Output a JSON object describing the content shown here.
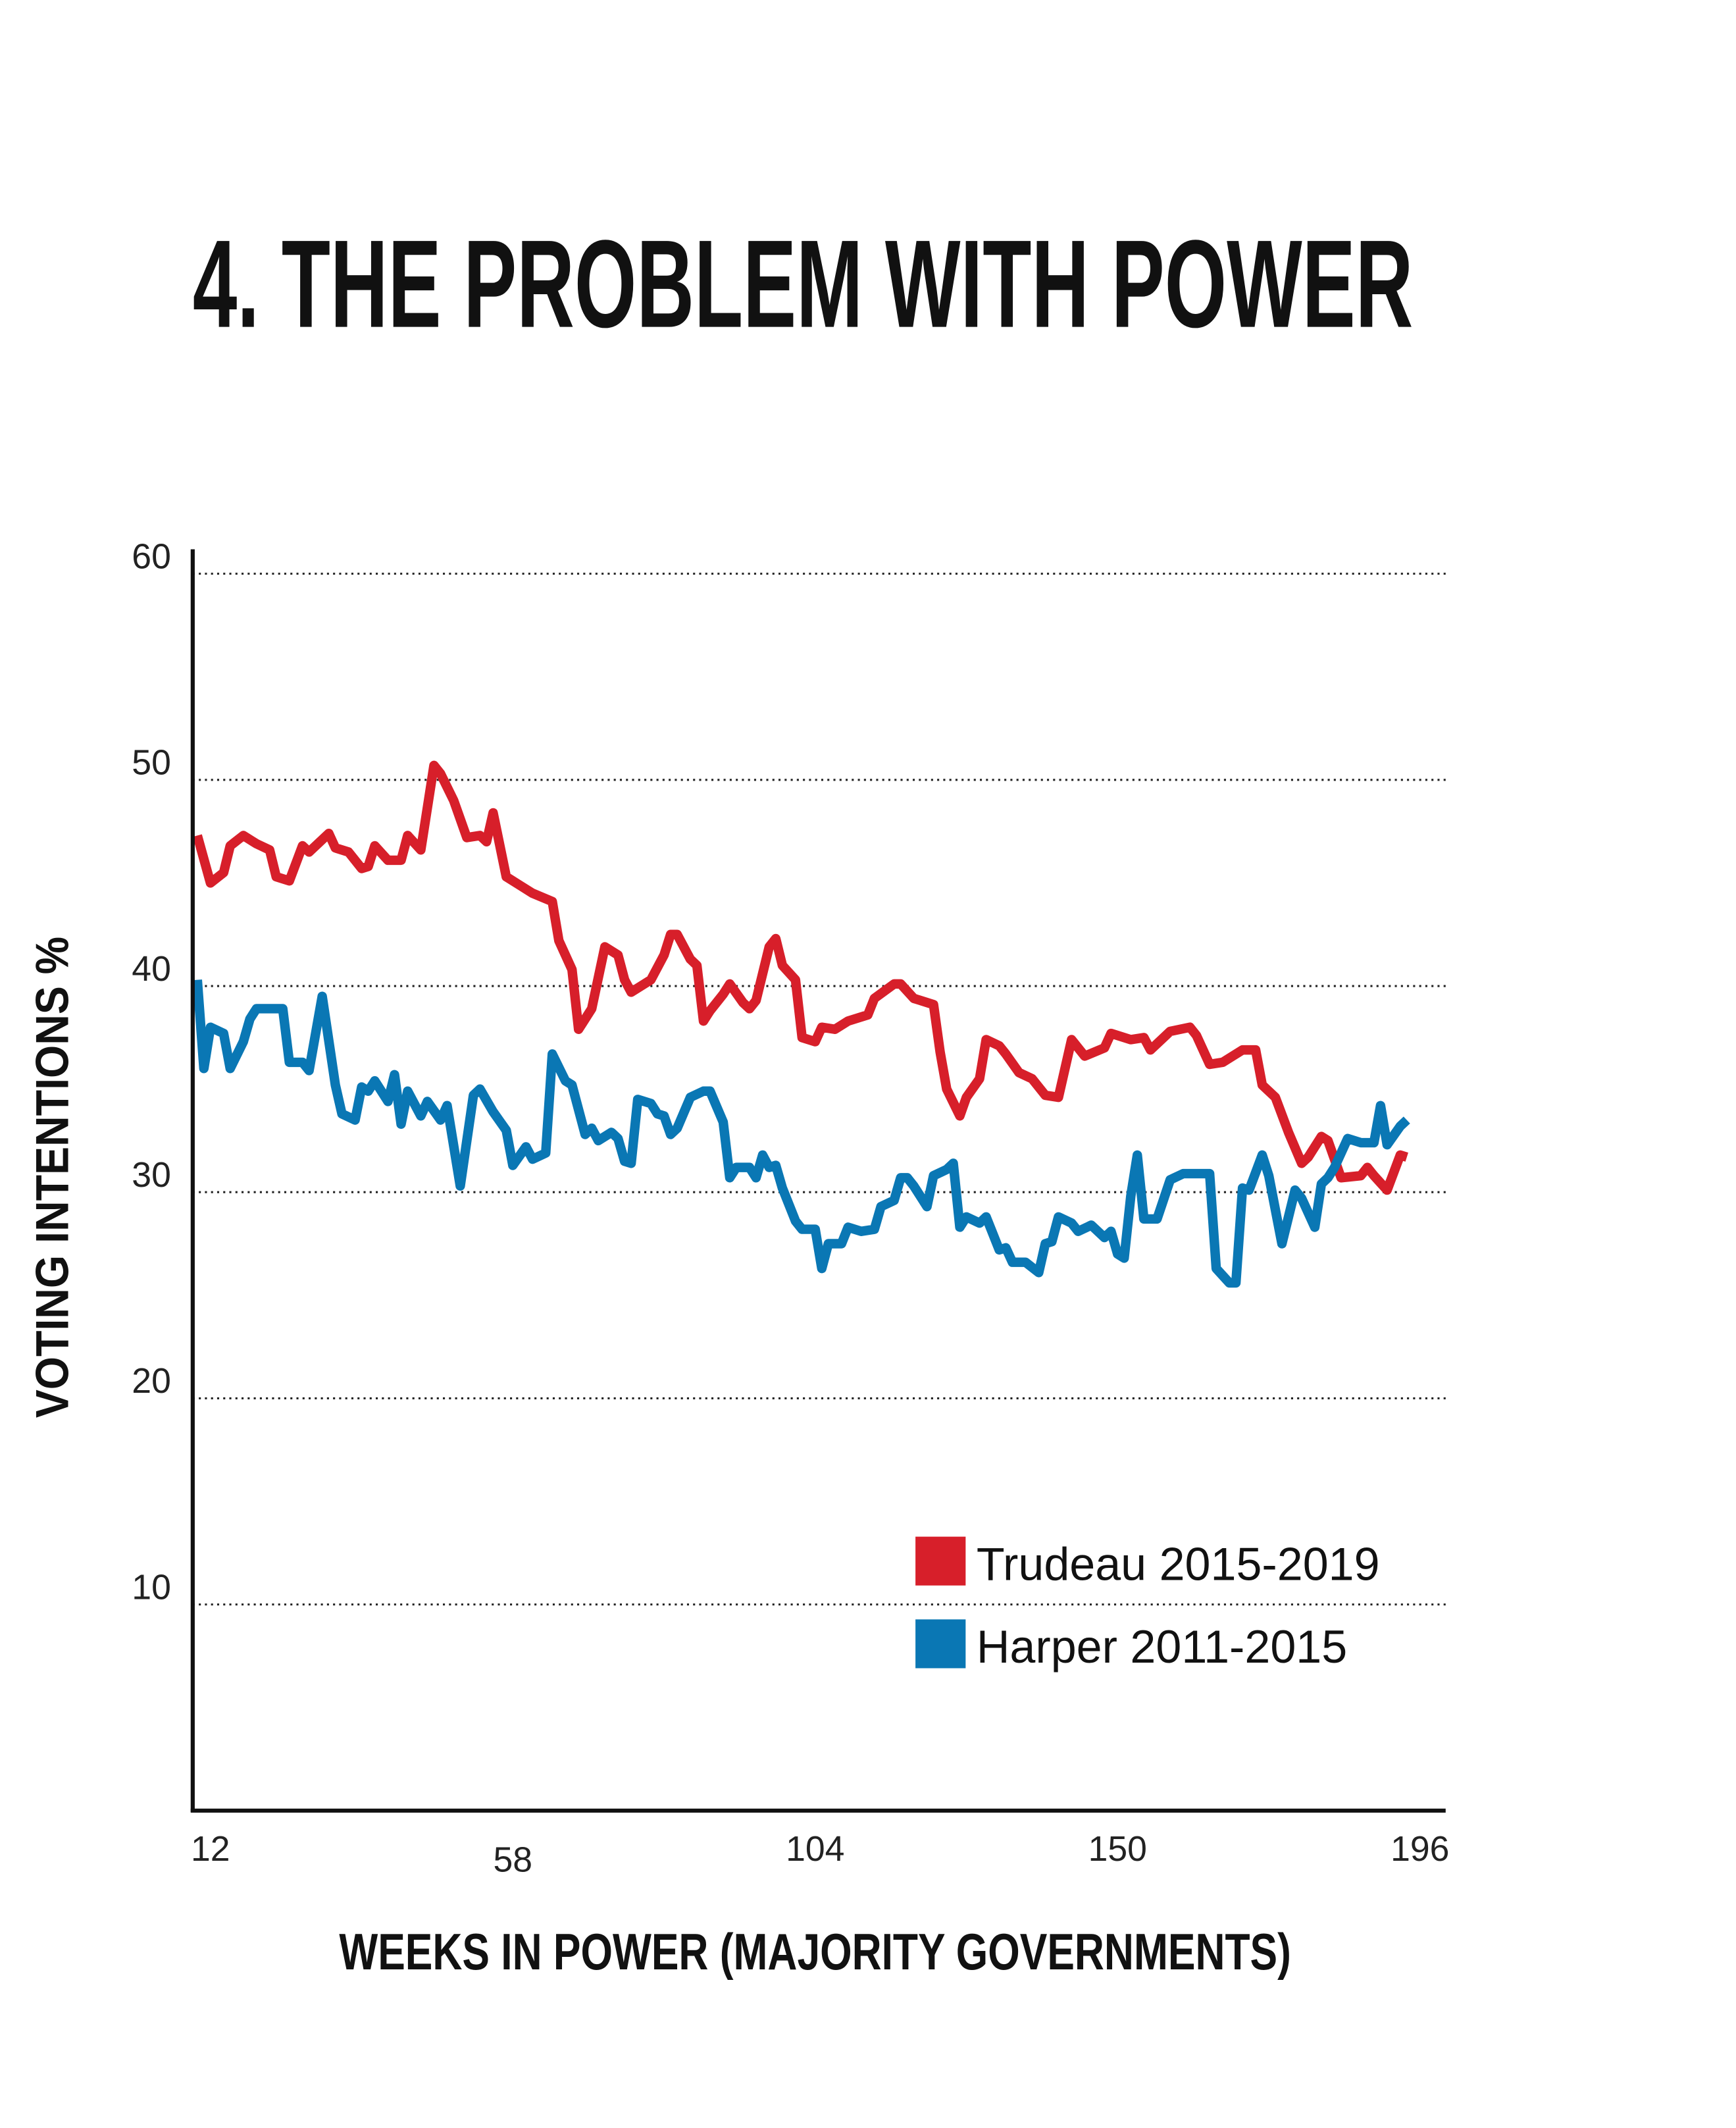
{
  "chart_data": {
    "type": "line",
    "title": "4. THE PROBLEM WITH POWER",
    "y_label": "VOTING INTENTIONS %",
    "x_label": "WEEKS IN POWER (MAJORITY GOVERNMENTS)",
    "xlim": [
      9.3,
      199.7
    ],
    "xticks": [
      12,
      58,
      104,
      150,
      196
    ],
    "ylim": [
      0,
      61
    ],
    "yticks": [
      10,
      20,
      30,
      40,
      50,
      60
    ],
    "grid": true,
    "legend": "lower right",
    "series": [
      {
        "name": "Trudeau 2015-2019",
        "color": "#d71f2a",
        "x": [
          10,
          12,
          14,
          15,
          17,
          19,
          21,
          22,
          24,
          26,
          27,
          30,
          31,
          33,
          35,
          36,
          37,
          39,
          41,
          42,
          44,
          46,
          47,
          49,
          51,
          53,
          54,
          55,
          57,
          59,
          61,
          64,
          65,
          67,
          68,
          70,
          72,
          74,
          75,
          76,
          79,
          81,
          82,
          83,
          85,
          86,
          87,
          88,
          90,
          91,
          93,
          94,
          95,
          97,
          98,
          99,
          101,
          102,
          104,
          105,
          107,
          109,
          112,
          113,
          116,
          117,
          119,
          122,
          123,
          124,
          126,
          127,
          129,
          130,
          132,
          133,
          135,
          137,
          139,
          141,
          143,
          145,
          148,
          149,
          152,
          154,
          155,
          158,
          161,
          162,
          164,
          166,
          169,
          171,
          172,
          174,
          176,
          178,
          179,
          181,
          182,
          184,
          187,
          188,
          189,
          191,
          193,
          194
        ],
        "values": [
          47.3,
          45,
          45.5,
          46.8,
          47.3,
          46.9,
          46.6,
          45.3,
          45.1,
          46.8,
          46.5,
          47.4,
          46.7,
          46.5,
          45.7,
          45.8,
          46.8,
          46.1,
          46.1,
          47.3,
          46.6,
          50.7,
          50.3,
          49,
          47.2,
          47.3,
          47,
          48.4,
          45.3,
          44.9,
          44.5,
          44.1,
          42.2,
          40.8,
          37.9,
          38.9,
          41.9,
          41.5,
          40.3,
          39.7,
          40.3,
          41.5,
          42.5,
          42.5,
          41.3,
          41,
          38.3,
          38.8,
          39.6,
          40.1,
          39.2,
          38.9,
          39.3,
          41.9,
          42.3,
          41,
          40.3,
          37.5,
          37.3,
          38,
          37.9,
          38.3,
          38.6,
          39.4,
          40.1,
          40.1,
          39.4,
          39.1,
          36.8,
          35,
          33.7,
          34.6,
          35.5,
          37.4,
          37.1,
          36.7,
          35.8,
          35.5,
          34.7,
          34.6,
          37.4,
          36.6,
          37,
          37.7,
          37.4,
          37.5,
          36.9,
          37.8,
          38,
          37.6,
          36.2,
          36.3,
          36.9,
          36.9,
          35.2,
          34.6,
          32.9,
          31.4,
          31.7,
          32.7,
          32.5,
          30.7,
          30.8,
          31.2,
          30.8,
          30.1,
          31.8,
          31.7
        ]
      },
      {
        "name": "Harper 2011-2015",
        "color": "#0a77b4",
        "x": [
          10,
          11,
          12,
          14,
          15,
          17,
          18,
          19,
          21,
          23,
          24,
          26,
          27,
          28,
          29,
          31,
          32,
          34,
          35,
          36,
          37,
          39,
          40,
          41,
          42,
          44,
          45,
          47,
          48,
          50,
          52,
          53,
          55,
          57,
          58,
          60,
          61,
          63,
          64,
          66,
          67,
          69,
          70,
          71,
          73,
          74,
          75,
          76,
          77,
          79,
          80,
          81,
          82,
          83,
          85,
          87,
          88,
          90,
          91,
          92,
          94,
          95,
          96,
          97,
          98,
          99,
          101,
          102,
          104,
          105,
          106,
          108,
          109,
          111,
          113,
          114,
          116,
          117,
          118,
          119,
          121,
          122,
          124,
          125,
          126,
          127,
          129,
          130,
          132,
          133,
          134,
          136,
          138,
          139,
          140,
          141,
          143,
          144,
          146,
          148,
          149,
          150,
          151,
          152,
          153,
          154,
          156,
          158,
          160,
          164,
          165,
          167,
          168,
          169,
          170,
          172,
          173,
          175,
          177,
          178,
          180,
          181,
          182,
          183,
          185,
          187,
          189,
          190,
          191,
          193,
          194
        ],
        "values": [
          40.3,
          36,
          38,
          37.7,
          36,
          37.3,
          38.4,
          38.9,
          38.9,
          38.9,
          36.3,
          36.3,
          35.9,
          37.7,
          39.5,
          35.2,
          33.8,
          33.5,
          35.1,
          34.9,
          35.4,
          34.4,
          35.7,
          33.3,
          34.9,
          33.7,
          34.4,
          33.5,
          34.2,
          30.3,
          34.7,
          35,
          33.9,
          33,
          31.3,
          32.2,
          31.6,
          31.9,
          36.7,
          35.4,
          35.2,
          32.8,
          33.1,
          32.5,
          32.9,
          32.6,
          31.5,
          31.4,
          34.5,
          34.3,
          33.8,
          33.7,
          32.8,
          33.1,
          34.6,
          34.9,
          34.9,
          33.4,
          30.7,
          31.2,
          31.2,
          30.7,
          31.8,
          31.2,
          31.3,
          30.2,
          28.6,
          28.2,
          28.2,
          26.3,
          27.5,
          27.5,
          28.3,
          28.1,
          28.2,
          29.3,
          29.6,
          30.7,
          30.7,
          30.3,
          29.3,
          30.8,
          31.1,
          31.4,
          28.3,
          28.8,
          28.5,
          28.8,
          27.2,
          27.3,
          26.6,
          26.6,
          26.1,
          27.5,
          27.6,
          28.8,
          28.5,
          28.1,
          28.4,
          27.8,
          28.1,
          27,
          26.8,
          29.8,
          31.8,
          28.7,
          28.7,
          30.6,
          30.9,
          30.9,
          26.3,
          25.6,
          25.6,
          30.2,
          30.1,
          31.8,
          30.8,
          27.5,
          30.1,
          29.7,
          28.3,
          30.4,
          30.7,
          31.2,
          32.6,
          32.4,
          32.4,
          34.2,
          32.3,
          33.2,
          33.5
        ]
      }
    ]
  }
}
